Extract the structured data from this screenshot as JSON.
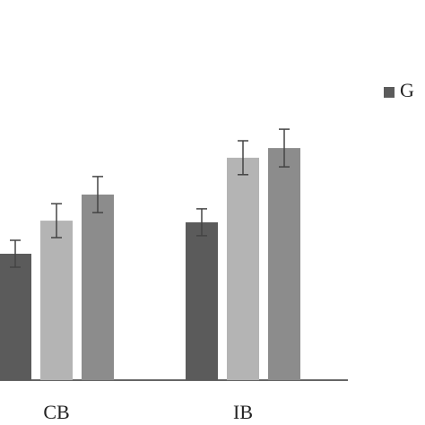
{
  "chart_data": {
    "type": "bar",
    "categories": [
      "CB",
      "IB"
    ],
    "series": [
      {
        "name": "G",
        "color": "#5b5b5b",
        "values": [
          47,
          58.7
        ],
        "errors": [
          5,
          5
        ]
      },
      {
        "color": "#b4b4b4",
        "values": [
          59.3,
          82.7
        ],
        "errors": [
          6.3,
          6.3
        ]
      },
      {
        "color": "#8c8c8c",
        "values": [
          69,
          86.3
        ],
        "errors": [
          6.7,
          7
        ]
      }
    ],
    "ylim": [
      0,
      100
    ]
  }
}
